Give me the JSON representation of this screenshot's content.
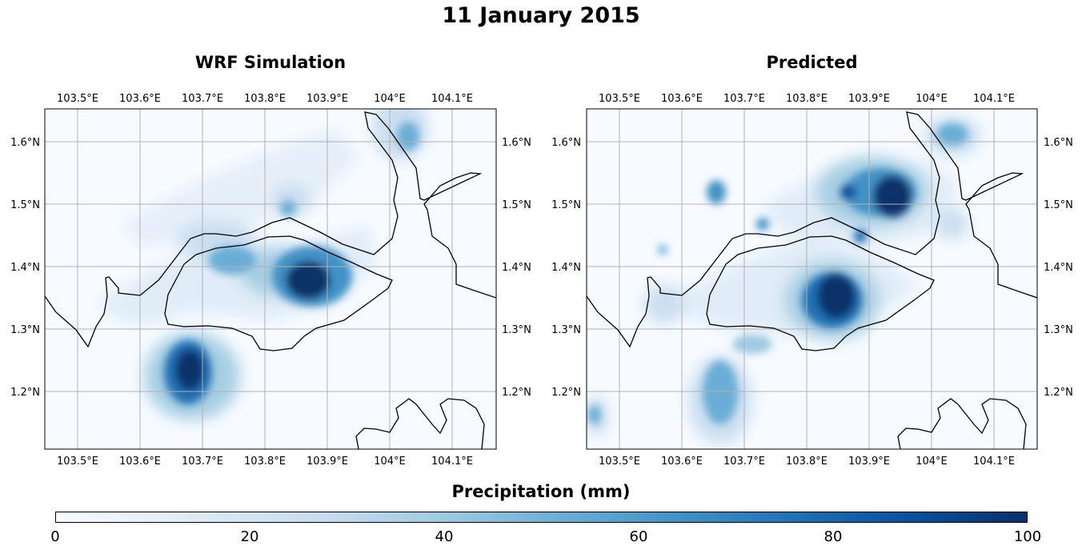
{
  "figure_title": "11 January 2015",
  "panels": [
    {
      "title": "WRF Simulation"
    },
    {
      "title": "Predicted"
    }
  ],
  "lon_ticks": [
    "103.5°E",
    "103.6°E",
    "103.7°E",
    "103.8°E",
    "103.9°E",
    "104°E",
    "104.1°E"
  ],
  "lat_ticks": [
    "1.6°N",
    "1.5°N",
    "1.4°N",
    "1.3°N",
    "1.2°N"
  ],
  "colorbar": {
    "label": "Precipitation (mm)",
    "ticks": [
      "0",
      "20",
      "40",
      "60",
      "80",
      "100"
    ],
    "colormap": "Blues"
  },
  "colors": {
    "coastline": "#000000",
    "grid": "#b0b0b0",
    "low": "#f7fbff",
    "high": "#08306b"
  }
}
